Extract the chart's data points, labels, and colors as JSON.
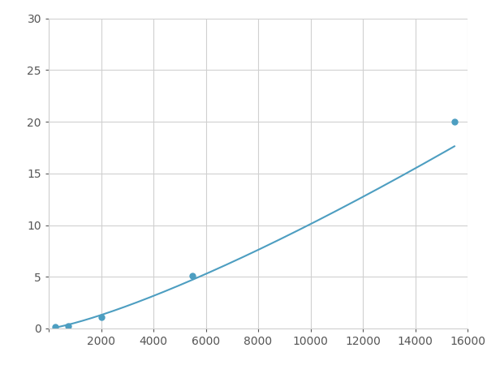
{
  "x": [
    250,
    750,
    2000,
    5500,
    15500
  ],
  "y": [
    0.13,
    0.26,
    1.1,
    5.1,
    20.0
  ],
  "line_color": "#4d9ec1",
  "marker_color": "#4d9ec1",
  "marker_size": 5,
  "linewidth": 1.5,
  "xlim": [
    0,
    16000
  ],
  "ylim": [
    0,
    30
  ],
  "xticks": [
    0,
    2000,
    4000,
    6000,
    8000,
    10000,
    12000,
    14000,
    16000
  ],
  "yticks": [
    0,
    5,
    10,
    15,
    20,
    25,
    30
  ],
  "grid_color": "#d0d0d0",
  "bg_color": "#ffffff",
  "tick_labelsize": 10
}
